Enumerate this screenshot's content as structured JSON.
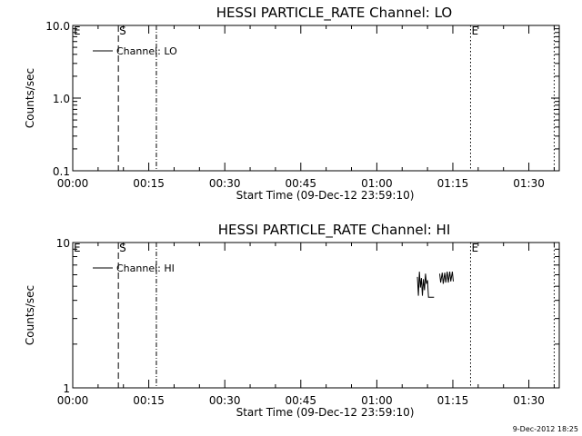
{
  "chart_data": [
    {
      "type": "line",
      "title": "HESSI PARTICLE_RATE Channel: LO",
      "xlabel": "Start Time (09-Dec-12 23:59:10)",
      "ylabel": "Counts/sec",
      "y_scale": "log",
      "ylim": [
        0.1,
        10.0
      ],
      "y_ticks": [
        0.1,
        1.0,
        10.0
      ],
      "y_tick_labels": [
        "0.1",
        "1.0",
        "10.0"
      ],
      "xlim_minutes": [
        0,
        96
      ],
      "x_ticks_minutes": [
        0,
        15,
        30,
        45,
        60,
        75,
        90
      ],
      "x_tick_labels": [
        "00:00",
        "00:15",
        "00:30",
        "00:45",
        "01:00",
        "01:15",
        "01:30"
      ],
      "legend": {
        "entries": [
          "Channel: LO"
        ],
        "placement": "top-left"
      },
      "markers": [
        {
          "label": "E",
          "minute": 0,
          "style": "none"
        },
        {
          "label": "S",
          "minute": 9,
          "style": "dashed"
        },
        {
          "label": "",
          "minute": 16.5,
          "style": "dash-dot"
        },
        {
          "label": "E",
          "minute": 78.5,
          "style": "dotted"
        },
        {
          "label": "",
          "minute": 95,
          "style": "dotted"
        }
      ],
      "series": [
        {
          "name": "Channel: LO",
          "points": []
        }
      ]
    },
    {
      "type": "line",
      "title": "HESSI PARTICLE_RATE Channel: HI",
      "xlabel": "Start Time (09-Dec-12 23:59:10)",
      "ylabel": "Counts/sec",
      "y_scale": "log",
      "ylim": [
        1,
        10
      ],
      "y_ticks": [
        1,
        10
      ],
      "y_tick_labels": [
        "1",
        "10"
      ],
      "xlim_minutes": [
        0,
        96
      ],
      "x_ticks_minutes": [
        0,
        15,
        30,
        45,
        60,
        75,
        90
      ],
      "x_tick_labels": [
        "00:00",
        "00:15",
        "00:30",
        "00:45",
        "01:00",
        "01:15",
        "01:30"
      ],
      "legend": {
        "entries": [
          "Channel: HI"
        ],
        "placement": "top-left"
      },
      "markers": [
        {
          "label": "E",
          "minute": 0,
          "style": "none"
        },
        {
          "label": "S",
          "minute": 9,
          "style": "dashed"
        },
        {
          "label": "",
          "minute": 16.5,
          "style": "dash-dot"
        },
        {
          "label": "E",
          "minute": 78.5,
          "style": "dotted"
        },
        {
          "label": "",
          "minute": 95,
          "style": "dotted"
        }
      ],
      "series": [
        {
          "name": "Channel: HI",
          "points": [
            [
              68.0,
              5.8
            ],
            [
              68.2,
              4.3
            ],
            [
              68.4,
              6.3
            ],
            [
              68.6,
              4.9
            ],
            [
              68.8,
              5.7
            ],
            [
              69.0,
              4.3
            ],
            [
              69.2,
              5.6
            ],
            [
              69.4,
              4.7
            ],
            [
              69.6,
              6.1
            ],
            [
              69.8,
              5.2
            ],
            [
              70.0,
              5.5
            ],
            [
              70.2,
              4.2
            ],
            [
              70.4,
              4.2
            ],
            [
              70.6,
              4.2
            ],
            [
              71.3,
              4.2
            ]
          ]
        },
        {
          "name": "Channel: HI",
          "points": [
            [
              72.4,
              6.1
            ],
            [
              72.6,
              5.3
            ],
            [
              72.9,
              6.2
            ],
            [
              73.1,
              5.2
            ],
            [
              73.4,
              6.2
            ],
            [
              73.6,
              5.3
            ],
            [
              73.9,
              6.3
            ],
            [
              74.1,
              5.3
            ],
            [
              74.4,
              6.3
            ],
            [
              74.6,
              5.4
            ],
            [
              74.9,
              6.3
            ],
            [
              75.1,
              5.4
            ]
          ]
        }
      ]
    }
  ],
  "footer": {
    "timestamp": "9-Dec-2012 18:25"
  }
}
